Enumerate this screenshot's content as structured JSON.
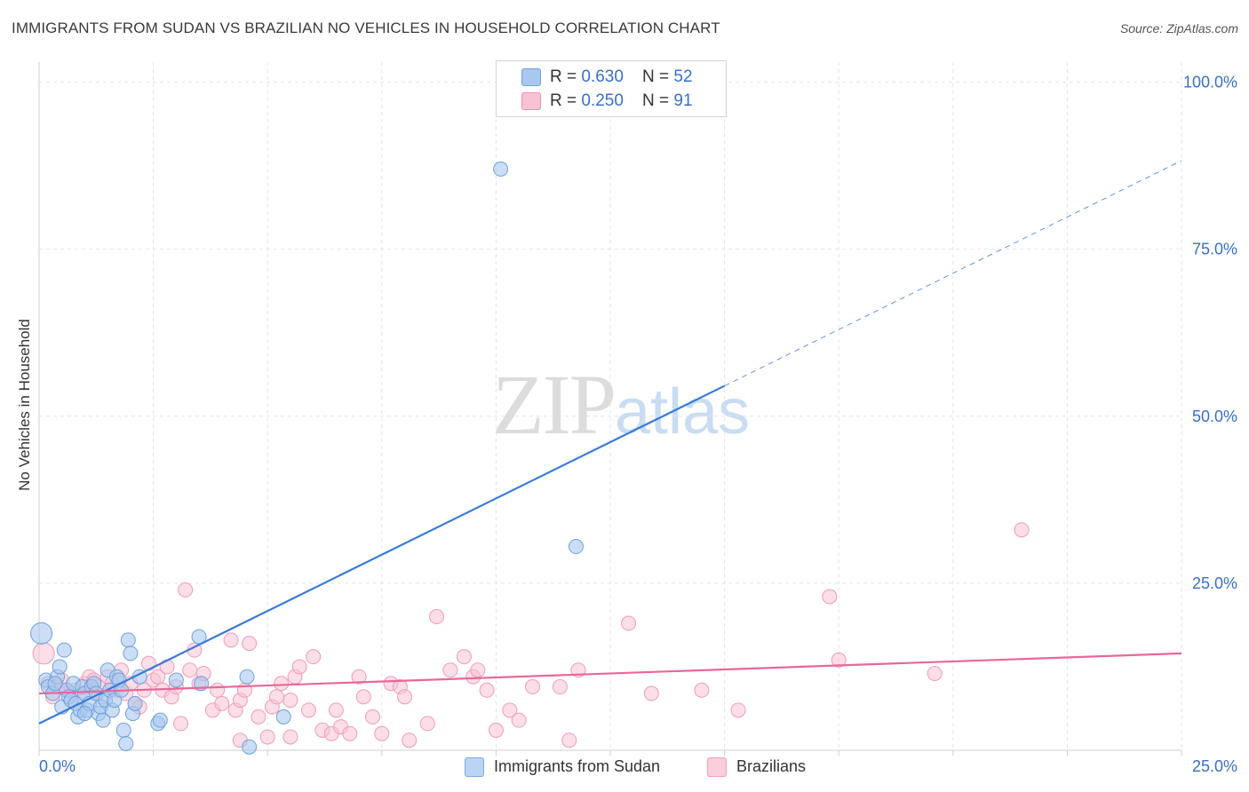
{
  "title": "IMMIGRANTS FROM SUDAN VS BRAZILIAN NO VEHICLES IN HOUSEHOLD CORRELATION CHART",
  "source": "Source: ZipAtlas.com",
  "watermark": {
    "zip": "ZIP",
    "atlas": "atlas"
  },
  "legend": {
    "rows": [
      {
        "r_label": "R = ",
        "r_value": "0.630",
        "n_label": "N = ",
        "n_value": "52",
        "color": "#a9c8ef",
        "border": "#6fa0dc"
      },
      {
        "r_label": "R = ",
        "r_value": "0.250",
        "n_label": "N = ",
        "n_value": "91",
        "color": "#f7c3d4",
        "border": "#ec8fae"
      }
    ]
  },
  "bottom_legend": [
    {
      "label": "Immigrants from Sudan",
      "color": "#bcd4f3",
      "border": "#7ea8de"
    },
    {
      "label": "Brazilians",
      "color": "#f9cfdc",
      "border": "#ee9db8"
    }
  ],
  "chart_data": {
    "type": "scatter",
    "title": "IMMIGRANTS FROM SUDAN VS BRAZILIAN NO VEHICLES IN HOUSEHOLD CORRELATION CHART",
    "xlabel": "",
    "ylabel": "No Vehicles in Household",
    "xlim": [
      0,
      25
    ],
    "ylim": [
      0,
      103
    ],
    "x_tick_labels": [
      "0.0%",
      "25.0%"
    ],
    "y_ticks": [
      25,
      50,
      75,
      100
    ],
    "y_tick_labels": [
      "25.0%",
      "50.0%",
      "75.0%",
      "100.0%"
    ],
    "grid": true,
    "colors": {
      "sudan": "#3a7bd5",
      "sudan_fill": "#a9c8ef",
      "brazil": "#e8679a",
      "brazil_fill": "#f7c3d4",
      "axis_label": "#3a6fc4"
    },
    "series": [
      {
        "name": "Immigrants from Sudan",
        "r": 0.63,
        "n": 52,
        "trend": {
          "x0": 0,
          "y0": 4,
          "x_solid_end": 15,
          "x_dash_end": 25,
          "slope": 3.37
        },
        "points": [
          [
            0.05,
            17.5
          ],
          [
            0.15,
            10.5
          ],
          [
            0.2,
            9.5
          ],
          [
            0.3,
            8.5
          ],
          [
            0.4,
            11
          ],
          [
            0.45,
            12.5
          ],
          [
            0.5,
            6.5
          ],
          [
            0.55,
            15
          ],
          [
            0.6,
            9
          ],
          [
            0.65,
            8
          ],
          [
            0.7,
            7.5
          ],
          [
            0.75,
            10
          ],
          [
            0.8,
            7
          ],
          [
            0.85,
            5
          ],
          [
            0.9,
            6
          ],
          [
            0.95,
            9.5
          ],
          [
            1.0,
            8.5
          ],
          [
            1.05,
            6
          ],
          [
            1.1,
            7
          ],
          [
            1.15,
            9.5
          ],
          [
            1.2,
            10
          ],
          [
            1.25,
            8.5
          ],
          [
            1.3,
            5.5
          ],
          [
            1.35,
            6.5
          ],
          [
            1.4,
            4.5
          ],
          [
            1.45,
            7.5
          ],
          [
            1.5,
            12
          ],
          [
            1.55,
            9
          ],
          [
            1.6,
            6
          ],
          [
            1.65,
            7.5
          ],
          [
            1.7,
            11
          ],
          [
            1.75,
            10.5
          ],
          [
            1.8,
            9
          ],
          [
            1.85,
            3
          ],
          [
            1.9,
            1
          ],
          [
            1.95,
            16.5
          ],
          [
            2.0,
            14.5
          ],
          [
            2.05,
            5.5
          ],
          [
            2.1,
            7
          ],
          [
            2.2,
            11
          ],
          [
            2.6,
            4
          ],
          [
            2.65,
            4.5
          ],
          [
            3.0,
            10.5
          ],
          [
            3.5,
            17
          ],
          [
            3.55,
            10
          ],
          [
            4.55,
            11
          ],
          [
            4.6,
            0.5
          ],
          [
            5.35,
            5
          ],
          [
            10.1,
            87
          ],
          [
            11.75,
            30.5
          ],
          [
            0.35,
            10
          ],
          [
            1.0,
            5.5
          ]
        ]
      },
      {
        "name": "Brazilians",
        "r": 0.25,
        "n": 91,
        "trend": {
          "x0": 0,
          "y0": 8.5,
          "x1": 25,
          "y1": 14.5
        },
        "points": [
          [
            0.1,
            14.5
          ],
          [
            0.2,
            10
          ],
          [
            0.3,
            8
          ],
          [
            0.4,
            9.5
          ],
          [
            0.5,
            10.5
          ],
          [
            0.6,
            9
          ],
          [
            0.7,
            8.5
          ],
          [
            0.8,
            9
          ],
          [
            0.9,
            8
          ],
          [
            1.0,
            10
          ],
          [
            1.1,
            11
          ],
          [
            1.2,
            10.5
          ],
          [
            1.3,
            9.5
          ],
          [
            1.4,
            8
          ],
          [
            1.5,
            11
          ],
          [
            1.6,
            10
          ],
          [
            1.7,
            9
          ],
          [
            1.8,
            12
          ],
          [
            1.9,
            8.5
          ],
          [
            2.0,
            10
          ],
          [
            2.1,
            7
          ],
          [
            2.2,
            6.5
          ],
          [
            2.3,
            9
          ],
          [
            2.4,
            13
          ],
          [
            2.5,
            10.5
          ],
          [
            2.6,
            11
          ],
          [
            2.7,
            9
          ],
          [
            2.8,
            12.5
          ],
          [
            2.9,
            8
          ],
          [
            3.0,
            9.5
          ],
          [
            3.1,
            4
          ],
          [
            3.2,
            24
          ],
          [
            3.3,
            12
          ],
          [
            3.4,
            15
          ],
          [
            3.5,
            10
          ],
          [
            3.6,
            11.5
          ],
          [
            3.8,
            6
          ],
          [
            3.9,
            9
          ],
          [
            4.0,
            7
          ],
          [
            4.2,
            16.5
          ],
          [
            4.3,
            6
          ],
          [
            4.4,
            7.5
          ],
          [
            4.5,
            9
          ],
          [
            4.6,
            16
          ],
          [
            4.8,
            5
          ],
          [
            5.0,
            2
          ],
          [
            5.1,
            6.5
          ],
          [
            5.2,
            8
          ],
          [
            5.3,
            10
          ],
          [
            5.5,
            7.5
          ],
          [
            5.6,
            11
          ],
          [
            5.7,
            12.5
          ],
          [
            5.9,
            6
          ],
          [
            6.0,
            14
          ],
          [
            6.2,
            3
          ],
          [
            6.4,
            2.5
          ],
          [
            6.5,
            6
          ],
          [
            6.6,
            3.5
          ],
          [
            6.8,
            2.5
          ],
          [
            7.0,
            11
          ],
          [
            7.1,
            8
          ],
          [
            7.3,
            5
          ],
          [
            7.5,
            2.5
          ],
          [
            7.7,
            10
          ],
          [
            7.9,
            9.5
          ],
          [
            8.1,
            1.5
          ],
          [
            8.5,
            4
          ],
          [
            8.7,
            20
          ],
          [
            9.0,
            12
          ],
          [
            9.3,
            14
          ],
          [
            9.5,
            11
          ],
          [
            9.8,
            9
          ],
          [
            10.3,
            6
          ],
          [
            10.5,
            4.5
          ],
          [
            10.8,
            9.5
          ],
          [
            11.4,
            9.5
          ],
          [
            11.6,
            1.5
          ],
          [
            11.8,
            12
          ],
          [
            12.9,
            19
          ],
          [
            13.4,
            8.5
          ],
          [
            14.5,
            9
          ],
          [
            15.3,
            6
          ],
          [
            17.3,
            23
          ],
          [
            17.5,
            13.5
          ],
          [
            19.6,
            11.5
          ],
          [
            21.5,
            33
          ],
          [
            4.4,
            1.5
          ],
          [
            5.5,
            2
          ],
          [
            8.0,
            8
          ],
          [
            9.6,
            12
          ],
          [
            10.0,
            3
          ]
        ]
      }
    ]
  }
}
